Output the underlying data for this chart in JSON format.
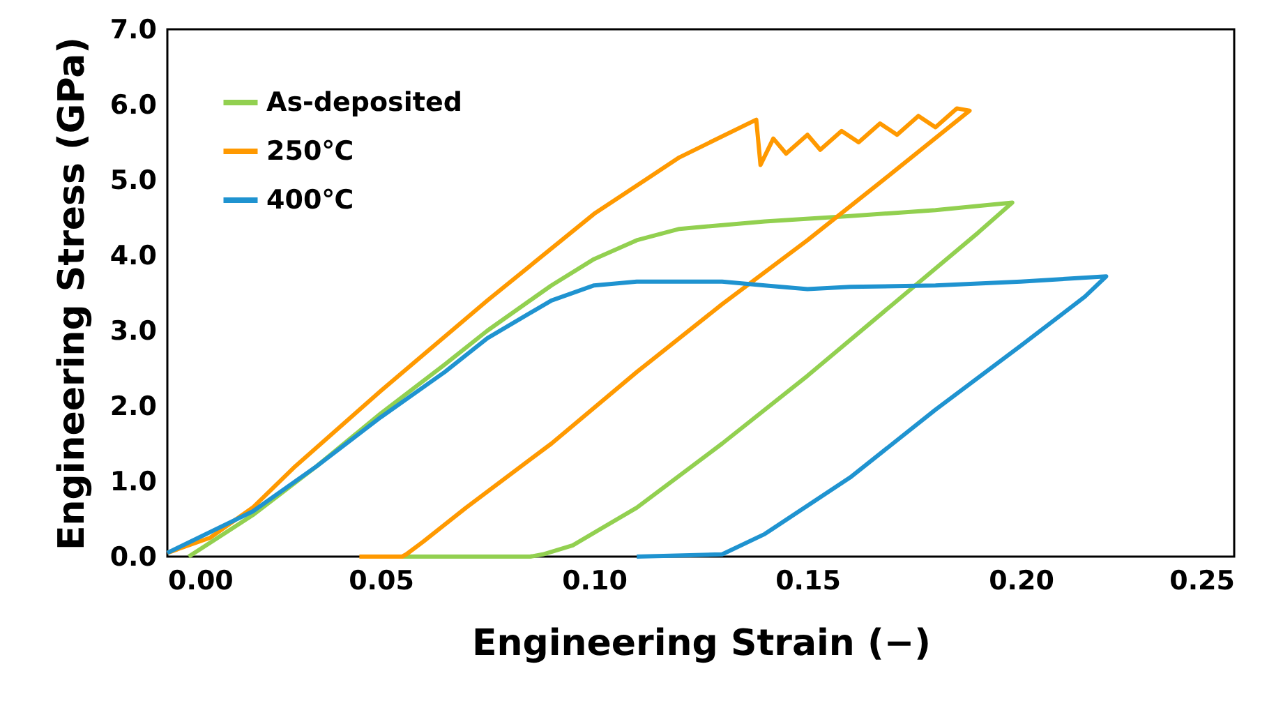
{
  "chart_data": {
    "type": "line",
    "xlabel": "Engineering Strain (−)",
    "ylabel": "Engineering Stress (GPa)",
    "xlim": [
      0,
      0.25
    ],
    "xticks": [
      {
        "value": 0,
        "label": "0.00"
      },
      0.05,
      {
        "value": 0.1,
        "label": "0.10"
      },
      0.15,
      {
        "value": 0.2,
        "label": "0.20"
      },
      0.25
    ],
    "ylim": [
      0,
      7
    ],
    "yticks": [
      {
        "value": 0,
        "label": "0.0"
      },
      {
        "value": 1,
        "label": "1.0"
      },
      {
        "value": 2,
        "label": "2.0"
      },
      {
        "value": 3,
        "label": "3.0"
      },
      {
        "value": 4,
        "label": "4.0"
      },
      {
        "value": 5,
        "label": "5.0"
      },
      {
        "value": 6,
        "label": "6.0"
      },
      {
        "value": 7,
        "label": "7.0"
      }
    ],
    "grid": false,
    "legend": "top left",
    "marker": "none",
    "line_style": "solid",
    "series": [
      {
        "name": "As-deposited",
        "color": "#92d050",
        "x": [
          0.005,
          0.02,
          0.035,
          0.05,
          0.065,
          0.075,
          0.085,
          0.09,
          0.1,
          0.11,
          0.12,
          0.14,
          0.16,
          0.18,
          0.198,
          0.19,
          0.17,
          0.15,
          0.13,
          0.11,
          0.095,
          0.088,
          0.085,
          0.07,
          0.055
        ],
        "values": [
          0,
          0.55,
          1.2,
          1.9,
          2.55,
          3.0,
          3.4,
          3.6,
          3.95,
          4.2,
          4.35,
          4.45,
          4.52,
          4.6,
          4.7,
          4.3,
          3.35,
          2.4,
          1.5,
          0.65,
          0.15,
          0.03,
          0,
          0,
          0
        ]
      },
      {
        "name": "250℃",
        "color": "#ff9900",
        "x": [
          0,
          0.01,
          0.02,
          0.03,
          0.05,
          0.075,
          0.1,
          0.12,
          0.138,
          0.139,
          0.142,
          0.145,
          0.15,
          0.153,
          0.158,
          0.162,
          0.167,
          0.171,
          0.176,
          0.18,
          0.185,
          0.188,
          0.17,
          0.15,
          0.13,
          0.11,
          0.09,
          0.07,
          0.06,
          0.056,
          0.055,
          0.045
        ],
        "values": [
          0.05,
          0.25,
          0.65,
          1.2,
          2.2,
          3.4,
          4.55,
          5.3,
          5.8,
          5.2,
          5.55,
          5.35,
          5.6,
          5.4,
          5.65,
          5.5,
          5.75,
          5.6,
          5.85,
          5.7,
          5.95,
          5.92,
          5.1,
          4.2,
          3.35,
          2.45,
          1.5,
          0.65,
          0.2,
          0.03,
          0,
          0
        ]
      },
      {
        "name": "400℃",
        "color": "#1f93d0",
        "x": [
          0,
          0.02,
          0.035,
          0.05,
          0.065,
          0.075,
          0.09,
          0.1,
          0.11,
          0.13,
          0.14,
          0.15,
          0.16,
          0.18,
          0.2,
          0.22,
          0.215,
          0.2,
          0.18,
          0.16,
          0.14,
          0.13,
          0.11
        ],
        "values": [
          0.05,
          0.6,
          1.2,
          1.85,
          2.45,
          2.9,
          3.4,
          3.6,
          3.65,
          3.65,
          3.6,
          3.55,
          3.58,
          3.6,
          3.65,
          3.72,
          3.45,
          2.8,
          1.95,
          1.05,
          0.3,
          0.03,
          0
        ]
      }
    ]
  }
}
